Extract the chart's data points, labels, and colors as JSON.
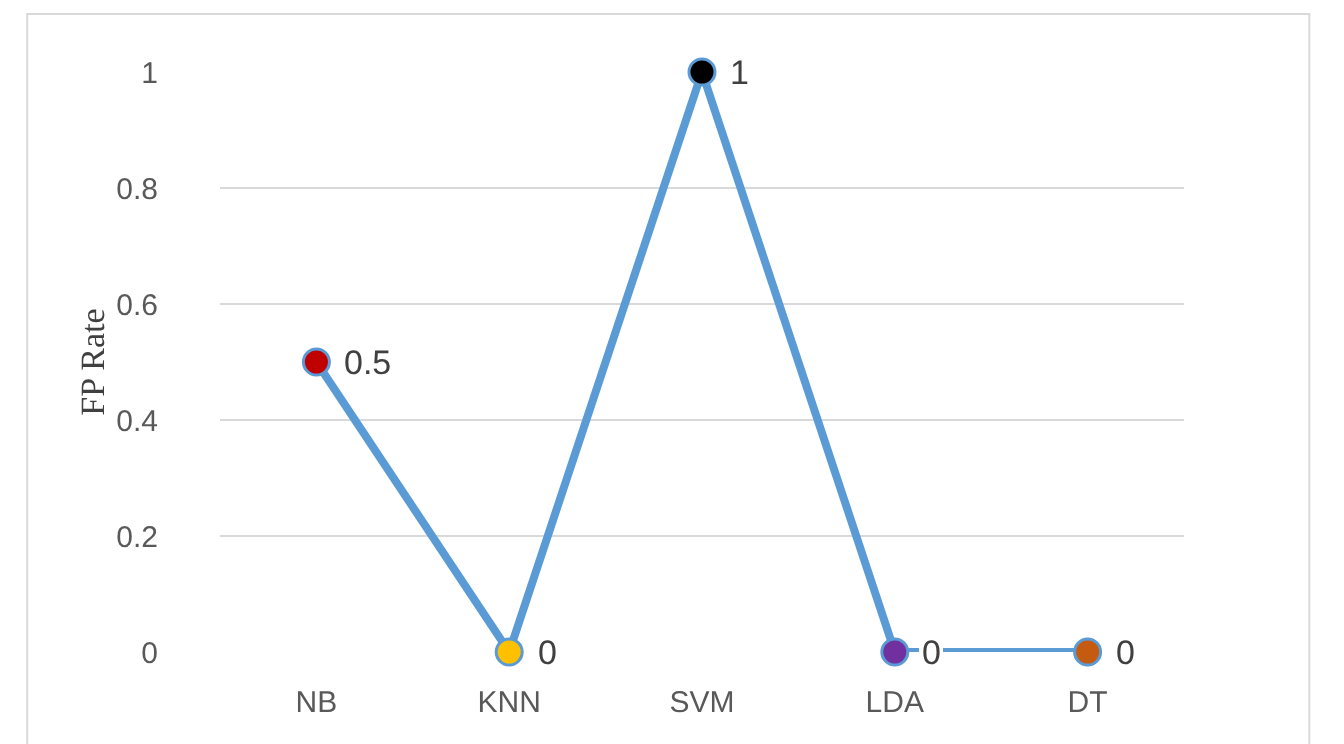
{
  "chart_data": {
    "type": "line",
    "ylabel": "FP Rate",
    "categories": [
      "NB",
      "KNN",
      "SVM",
      "LDA",
      "DT"
    ],
    "values": [
      0.5,
      0,
      1,
      0,
      0
    ],
    "color": "#5b9bd5",
    "colors": [
      "#c00000",
      "#ffc000",
      "#000000",
      "#7030a0",
      "#c55a11"
    ],
    "ylim": [
      0,
      1
    ],
    "yticks": [
      0,
      0.2,
      0.4,
      0.6,
      0.8,
      1
    ],
    "grid": "y",
    "marker": "circle",
    "data_labels": true
  }
}
